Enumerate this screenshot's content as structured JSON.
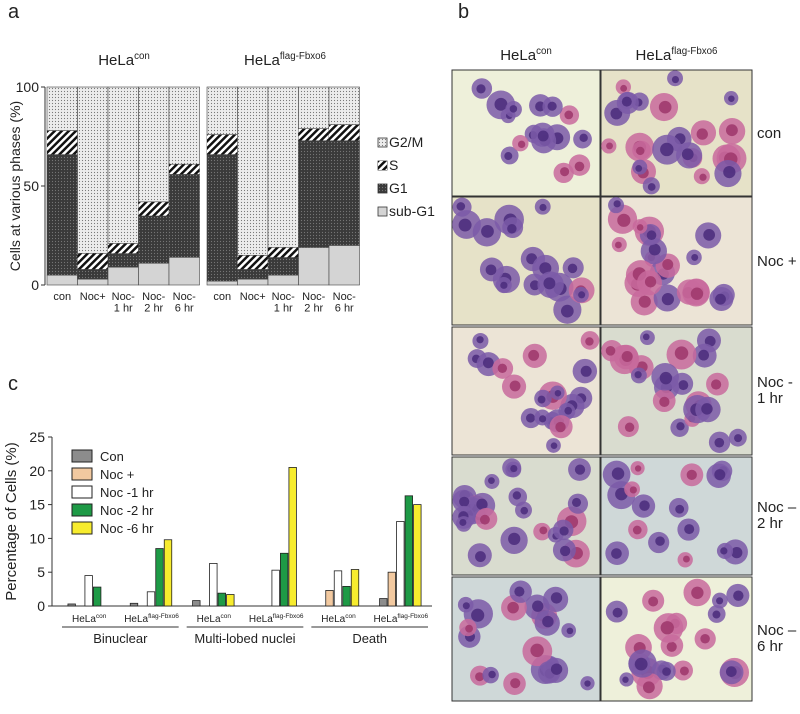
{
  "panel_labels": [
    "a",
    "b",
    "c"
  ],
  "chart_data": [
    {
      "type": "stacked-bar",
      "y_label": "Cells at various phases (%)",
      "group_labels": [
        {
          "text": "HeLa",
          "sup": "con"
        },
        {
          "text": "HeLa",
          "sup": "flag-Fbxo6"
        }
      ],
      "categories": [
        [
          "con"
        ],
        [
          "Noc+"
        ],
        [
          "Noc-",
          "1 hr"
        ],
        [
          "Noc-",
          "2 hr"
        ],
        [
          "Noc-",
          "6 hr"
        ],
        [
          "con"
        ],
        [
          "Noc+"
        ],
        [
          "Noc-",
          "1 hr"
        ],
        [
          "Noc-",
          "2 hr"
        ],
        [
          "Noc-",
          "6 hr"
        ]
      ],
      "series": [
        {
          "name": "sub-G1",
          "color": "#d4d4d4",
          "pattern": "none",
          "values": [
            5,
            3,
            9,
            11,
            14,
            2,
            3,
            5,
            19,
            20
          ]
        },
        {
          "name": "G1",
          "color": "#3a3a3a",
          "pattern": "dots",
          "values": [
            61,
            5,
            7,
            24,
            42,
            64,
            5,
            9,
            54,
            53
          ]
        },
        {
          "name": "S",
          "color": "#ffffff",
          "pattern": "hatch",
          "values": [
            12,
            8,
            5,
            7,
            5,
            10,
            7,
            5,
            6,
            8
          ]
        },
        {
          "name": "G2/M",
          "color": "#ececec",
          "pattern": "dots",
          "values": [
            22,
            84,
            79,
            58,
            39,
            24,
            85,
            81,
            21,
            19
          ]
        }
      ],
      "ylim": [
        0,
        100
      ],
      "yticks": [
        0,
        50,
        100
      ]
    },
    {
      "type": "grouped-bar",
      "y_label": "Percentage of Cells (%)",
      "subgroup_labels": [
        {
          "text": "HeLa",
          "sup": "con"
        },
        {
          "text": "HeLa",
          "sup": "flag-Fbxo6"
        },
        {
          "text": "HeLa",
          "sup": "con"
        },
        {
          "text": "HeLa",
          "sup": "flag-Fbxo6"
        },
        {
          "text": "HeLa",
          "sup": "con"
        },
        {
          "text": "HeLa",
          "sup": "flag-Fbxo6"
        }
      ],
      "group_labels": [
        "Binuclear",
        "Multi-lobed nuclei",
        "Death"
      ],
      "series": [
        {
          "name": "Con",
          "color": "#8c8c8c",
          "values": [
            0.3,
            0.4,
            0.8,
            0,
            0,
            1.1
          ]
        },
        {
          "name": "Noc +",
          "color": "#f2c9a0",
          "values": [
            0,
            0,
            0,
            0,
            2.3,
            5.0
          ]
        },
        {
          "name": "Noc -1 hr",
          "color": "#ffffff",
          "values": [
            4.5,
            2.1,
            6.3,
            5.3,
            5.2,
            12.5
          ]
        },
        {
          "name": "Noc -2 hr",
          "color": "#1e9a46",
          "values": [
            2.8,
            8.5,
            1.9,
            7.8,
            2.9,
            16.3
          ]
        },
        {
          "name": "Noc -6 hr",
          "color": "#f7ec2e",
          "values": [
            0,
            9.8,
            1.7,
            20.5,
            5.4,
            15.0
          ]
        }
      ],
      "ylim": [
        0,
        25
      ],
      "yticks": [
        0,
        5,
        10,
        15,
        20,
        25
      ]
    }
  ],
  "micrographs": {
    "column_headers": [
      {
        "text": "HeLa",
        "sup": "con"
      },
      {
        "text": "HeLa",
        "sup": "flag-Fbxo6"
      }
    ],
    "row_labels": [
      [
        "con"
      ],
      [
        "Noc +"
      ],
      [
        "Noc -",
        "1 hr"
      ],
      [
        "Noc –",
        "2 hr"
      ],
      [
        "Noc –",
        "6 hr"
      ]
    ]
  }
}
